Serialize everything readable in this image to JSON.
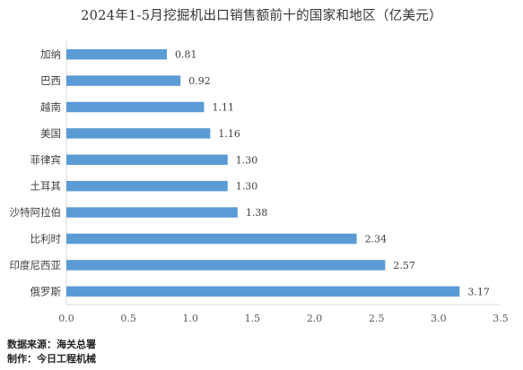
{
  "chart_data": {
    "type": "bar",
    "orientation": "horizontal",
    "title": "2024年1-5月挖掘机出口销售额前十的国家和地区（亿美元）",
    "categories": [
      "加纳",
      "巴西",
      "越南",
      "美国",
      "菲律宾",
      "土耳其",
      "沙特阿拉伯",
      "比利时",
      "印度尼西亚",
      "俄罗斯"
    ],
    "values": [
      0.81,
      0.92,
      1.11,
      1.16,
      1.3,
      1.3,
      1.38,
      2.34,
      2.57,
      3.17
    ],
    "data_labels": [
      "0.81",
      "0.92",
      "1.11",
      "1.16",
      "1.30",
      "1.30",
      "1.38",
      "2.34",
      "2.57",
      "3.17"
    ],
    "xlim": [
      0,
      3.5
    ],
    "x_ticks": [
      "0.0",
      "0.5",
      "1.0",
      "1.5",
      "2.0",
      "2.5",
      "3.0",
      "3.5"
    ],
    "grid": false,
    "bar_color": "#5b9bd5"
  },
  "footer": {
    "source": "数据来源：海关总署",
    "producer": "制作：今日工程机械"
  }
}
